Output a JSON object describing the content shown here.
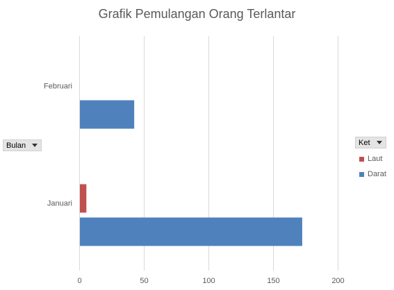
{
  "chart_data": {
    "type": "bar",
    "orientation": "horizontal",
    "title": "Grafik Pemulangan Orang Terlantar",
    "categories": [
      "Januari",
      "Februari"
    ],
    "series": [
      {
        "name": "Darat",
        "values": [
          172,
          42
        ],
        "color": "#4f81bd"
      },
      {
        "name": "Laut",
        "values": [
          5,
          null
        ],
        "color": "#c0504d"
      }
    ],
    "xlim": [
      0,
      200
    ],
    "x_ticks": [
      0,
      50,
      100,
      150,
      200
    ],
    "grid": "vertical",
    "legend_position": "right",
    "legend_title": "Ket",
    "category_field": "Bulan"
  },
  "colors": {
    "gridline": "#d9d9d9",
    "text": "#595959"
  },
  "icons": {
    "dropdown": "chevron-down-icon"
  }
}
